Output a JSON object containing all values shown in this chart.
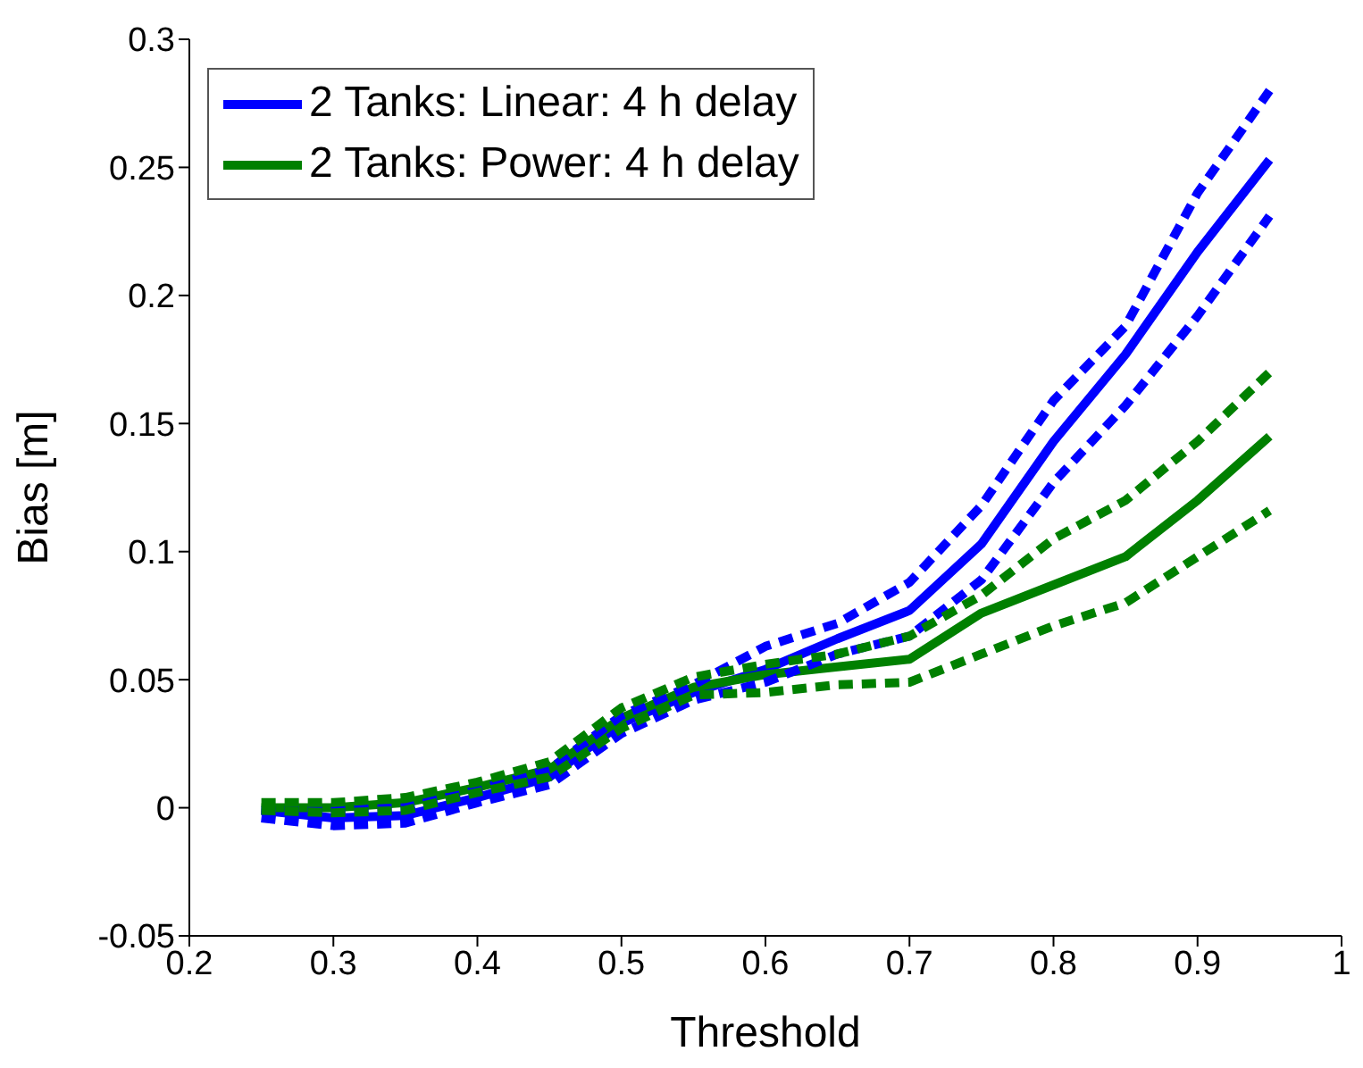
{
  "chart_data": {
    "type": "line",
    "xlabel": "Threshold",
    "ylabel": "Bias [m]",
    "x": [
      0.25,
      0.3,
      0.35,
      0.4,
      0.45,
      0.5,
      0.55,
      0.6,
      0.65,
      0.7,
      0.75,
      0.8,
      0.85,
      0.9,
      0.95
    ],
    "series": [
      {
        "name": "2 Tanks: Linear: 4 h delay",
        "color": "#0000ff",
        "values": [
          -0.001,
          -0.004,
          -0.003,
          0.004,
          0.012,
          0.033,
          0.045,
          0.054,
          0.066,
          0.077,
          0.103,
          0.143,
          0.177,
          0.217,
          0.253
        ]
      },
      {
        "name": "2 Tanks: Power: 4 h delay",
        "color": "#008000",
        "values": [
          0.0,
          0.0,
          0.002,
          0.008,
          0.015,
          0.035,
          0.047,
          0.052,
          0.055,
          0.058,
          0.076,
          0.087,
          0.098,
          0.12,
          0.145
        ]
      },
      {
        "color": "#0000ff",
        "line_style": "dashed",
        "values": [
          -0.004,
          -0.007,
          -0.006,
          0.002,
          0.009,
          0.029,
          0.042,
          0.049,
          0.06,
          0.067,
          0.089,
          0.127,
          0.157,
          0.192,
          0.231
        ]
      },
      {
        "color": "#0000ff",
        "line_style": "dashed",
        "values": [
          -0.001,
          -0.001,
          0.0,
          0.007,
          0.015,
          0.036,
          0.048,
          0.063,
          0.072,
          0.088,
          0.118,
          0.159,
          0.188,
          0.24,
          0.28
        ]
      },
      {
        "color": "#008000",
        "line_style": "dashed",
        "values": [
          -0.001,
          -0.002,
          -0.001,
          0.006,
          0.012,
          0.031,
          0.044,
          0.045,
          0.048,
          0.049,
          0.06,
          0.071,
          0.08,
          0.098,
          0.116
        ]
      },
      {
        "color": "#008000",
        "line_style": "dashed",
        "values": [
          0.002,
          0.002,
          0.004,
          0.01,
          0.018,
          0.039,
          0.051,
          0.056,
          0.06,
          0.067,
          0.083,
          0.105,
          0.12,
          0.143,
          0.17
        ]
      }
    ],
    "xlim": [
      0.2,
      1
    ],
    "xticks": [
      0.2,
      0.3,
      0.4,
      0.5,
      0.6,
      0.7,
      0.8,
      0.9,
      1
    ],
    "ylim": [
      -0.05,
      0.3
    ],
    "yticks": [
      -0.05,
      0,
      0.05,
      0.1,
      0.15,
      0.2,
      0.25,
      0.3
    ],
    "legend": "top left",
    "line_style": "solid",
    "marker": "none"
  }
}
